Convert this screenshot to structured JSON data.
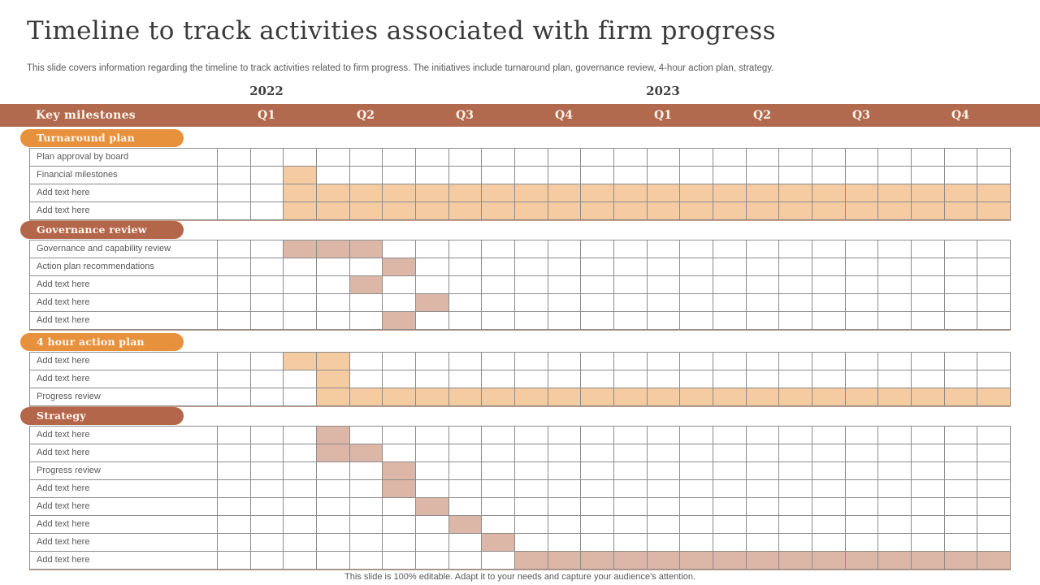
{
  "slide": {
    "title": "Timeline to track activities associated with firm progress",
    "subtitle": "This slide covers information regarding the timeline to track activities related to firm progress. The initiatives include turnaround plan, governance review, 4-hour action plan, strategy.",
    "footer": "This slide is 100% editable. Adapt it to your needs and capture your audience's attention."
  },
  "years": [
    {
      "label": "2022"
    },
    {
      "label": "2023"
    }
  ],
  "header": {
    "key_milestones": "Key milestones",
    "quarters": [
      "Q1",
      "Q2",
      "Q3",
      "Q4",
      "Q1",
      "Q2",
      "Q3",
      "Q4"
    ]
  },
  "colors": {
    "header_band": "#B16A4E",
    "pill_orange": "#E8913C",
    "pill_terracotta": "#B4664B",
    "fill_orange": "#F5CBA1",
    "fill_pink": "#DCB6A7",
    "grid_border": "#8C8C8C",
    "section_edge": "#C79E8C",
    "title_text": "#3A3A3A",
    "body_text": "#595959"
  },
  "chart_data": {
    "type": "gantt",
    "title": "Timeline to track activities associated with firm progress",
    "time_axis": {
      "years": [
        "2022",
        "2023"
      ],
      "quarters": [
        "2022 Q1",
        "2022 Q2",
        "2022 Q3",
        "2022 Q4",
        "2023 Q1",
        "2023 Q2",
        "2023 Q3",
        "2023 Q4"
      ],
      "columns_per_quarter": 3,
      "total_columns": 24
    },
    "sections": [
      {
        "name": "Turnaround plan",
        "pill_color": "#E8913C",
        "fill_color": "#F5CBA1",
        "rows": [
          {
            "label": "Plan approval by board",
            "bars": []
          },
          {
            "label": "Financial milestones",
            "bars": [
              {
                "start": 2,
                "end": 2
              }
            ]
          },
          {
            "label": "Add text here",
            "bars": [
              {
                "start": 2,
                "end": 23
              }
            ]
          },
          {
            "label": "Add text here",
            "bars": [
              {
                "start": 2,
                "end": 23
              }
            ]
          }
        ]
      },
      {
        "name": "Governance review",
        "pill_color": "#B4664B",
        "fill_color": "#DCB6A7",
        "rows": [
          {
            "label": "Governance and capability review",
            "bars": [
              {
                "start": 2,
                "end": 4
              }
            ]
          },
          {
            "label": "Action plan recommendations",
            "bars": [
              {
                "start": 5,
                "end": 5
              }
            ]
          },
          {
            "label": "Add text here",
            "bars": [
              {
                "start": 4,
                "end": 4
              }
            ]
          },
          {
            "label": "Add text here",
            "bars": [
              {
                "start": 6,
                "end": 6
              }
            ]
          },
          {
            "label": "Add text here",
            "bars": [
              {
                "start": 5,
                "end": 5
              }
            ]
          }
        ]
      },
      {
        "name": "4 hour action plan",
        "pill_color": "#E8913C",
        "fill_color": "#F5CBA1",
        "rows": [
          {
            "label": "Add text here",
            "bars": [
              {
                "start": 2,
                "end": 3
              }
            ]
          },
          {
            "label": "Add text here",
            "bars": [
              {
                "start": 3,
                "end": 3
              }
            ]
          },
          {
            "label": "Progress review",
            "bars": [
              {
                "start": 3,
                "end": 23
              }
            ]
          }
        ]
      },
      {
        "name": "Strategy",
        "pill_color": "#B4664B",
        "fill_color": "#DCB6A7",
        "rows": [
          {
            "label": "Add text here",
            "bars": [
              {
                "start": 3,
                "end": 3
              }
            ]
          },
          {
            "label": "Add text here",
            "bars": [
              {
                "start": 3,
                "end": 4
              }
            ]
          },
          {
            "label": "Progress review",
            "bars": [
              {
                "start": 5,
                "end": 5
              }
            ]
          },
          {
            "label": "Add text here",
            "bars": [
              {
                "start": 5,
                "end": 5
              }
            ]
          },
          {
            "label": "Add text here",
            "bars": [
              {
                "start": 6,
                "end": 6
              }
            ]
          },
          {
            "label": "Add text here",
            "bars": [
              {
                "start": 7,
                "end": 7
              }
            ]
          },
          {
            "label": "Add text here",
            "bars": [
              {
                "start": 8,
                "end": 8
              }
            ]
          },
          {
            "label": "Add text here",
            "bars": [
              {
                "start": 9,
                "end": 23
              }
            ]
          }
        ]
      }
    ]
  }
}
